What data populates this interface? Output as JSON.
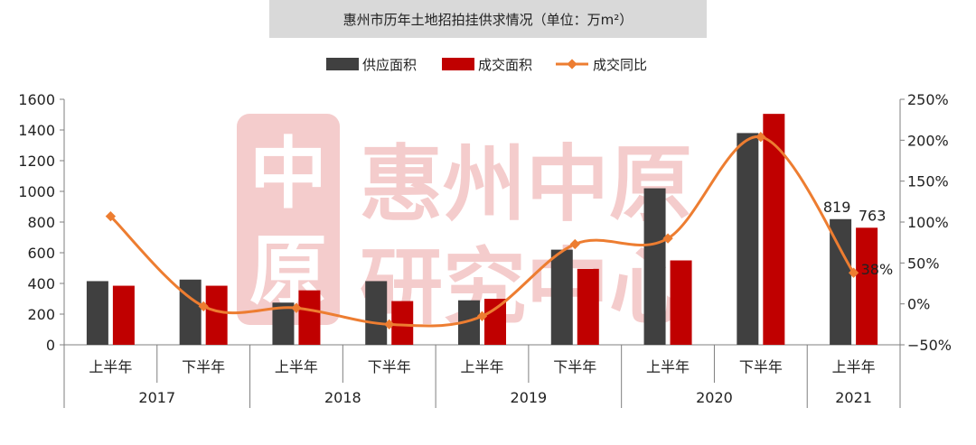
{
  "chart_data": {
    "type": "bar",
    "title": "惠州市历年土地招拍挂供求情况（单位：万m²）",
    "categories": [
      "上半年",
      "下半年",
      "上半年",
      "下半年",
      "上半年",
      "下半年",
      "上半年",
      "下半年",
      "上半年"
    ],
    "groups": [
      {
        "label": "2017",
        "span": 2
      },
      {
        "label": "2018",
        "span": 2
      },
      {
        "label": "2019",
        "span": 2
      },
      {
        "label": "2020",
        "span": 2
      },
      {
        "label": "2021",
        "span": 1
      }
    ],
    "series": [
      {
        "name": "供应面积",
        "type": "bar",
        "axis": "left",
        "color": "#404040",
        "values": [
          415,
          425,
          275,
          415,
          290,
          620,
          1020,
          1380,
          819
        ]
      },
      {
        "name": "成交面积",
        "type": "bar",
        "axis": "left",
        "color": "#c00000",
        "values": [
          385,
          385,
          355,
          285,
          300,
          495,
          550,
          1505,
          763
        ]
      },
      {
        "name": "成交同比",
        "type": "line",
        "axis": "right",
        "color": "#ed7d31",
        "values": [
          107,
          -3,
          -5,
          -25,
          -15,
          73,
          80,
          204,
          38
        ]
      }
    ],
    "ylim": [
      0,
      1600
    ],
    "yticks": [
      0,
      200,
      400,
      600,
      800,
      1000,
      1200,
      1400,
      1600
    ],
    "y2lim": [
      -50,
      250
    ],
    "y2ticks": [
      "-50%",
      "0%",
      "50%",
      "100%",
      "150%",
      "200%",
      "250%"
    ],
    "data_labels": [
      {
        "series": "供应面积",
        "index": 8,
        "text": "819"
      },
      {
        "series": "成交面积",
        "index": 8,
        "text": "763"
      },
      {
        "series": "成交同比",
        "index": 8,
        "text": "38%"
      }
    ],
    "legend_position": "top",
    "grid": false
  },
  "watermark": {
    "text_line1": "惠州中原",
    "text_line2": "研究中心",
    "color": "#f3c4c4"
  }
}
